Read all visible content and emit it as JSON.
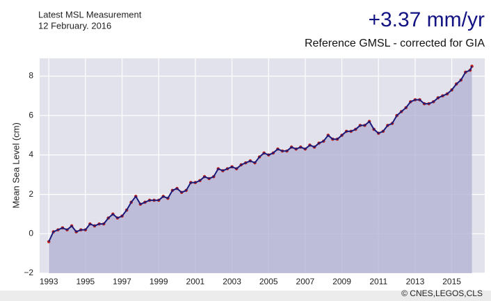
{
  "chart_data": {
    "type": "line",
    "title": "+3.37 mm/yr",
    "subtitle": "Reference GMSL - corrected for GIA",
    "annotations": [
      "Latest MSL Measurement",
      "12 February. 2016"
    ],
    "source": "© CNES,LEGOS,CLS",
    "ylabel": "Mean Sea Level (cm)",
    "x": [
      1993.0,
      1993.25,
      1993.5,
      1993.75,
      1994.0,
      1994.25,
      1994.5,
      1994.75,
      1995.0,
      1995.25,
      1995.5,
      1995.75,
      1996.0,
      1996.25,
      1996.5,
      1996.75,
      1997.0,
      1997.25,
      1997.5,
      1997.75,
      1998.0,
      1998.25,
      1998.5,
      1998.75,
      1999.0,
      1999.25,
      1999.5,
      1999.75,
      2000.0,
      2000.25,
      2000.5,
      2000.75,
      2001.0,
      2001.25,
      2001.5,
      2001.75,
      2002.0,
      2002.25,
      2002.5,
      2002.75,
      2003.0,
      2003.25,
      2003.5,
      2003.75,
      2004.0,
      2004.25,
      2004.5,
      2004.75,
      2005.0,
      2005.25,
      2005.5,
      2005.75,
      2006.0,
      2006.25,
      2006.5,
      2006.75,
      2007.0,
      2007.25,
      2007.5,
      2007.75,
      2008.0,
      2008.25,
      2008.5,
      2008.75,
      2009.0,
      2009.25,
      2009.5,
      2009.75,
      2010.0,
      2010.25,
      2010.5,
      2010.75,
      2011.0,
      2011.25,
      2011.5,
      2011.75,
      2012.0,
      2012.25,
      2012.5,
      2012.75,
      2013.0,
      2013.25,
      2013.5,
      2013.75,
      2014.0,
      2014.25,
      2014.5,
      2014.75,
      2015.0,
      2015.25,
      2015.5,
      2015.75,
      2016.0,
      2016.1
    ],
    "values": [
      -0.4,
      0.1,
      0.2,
      0.3,
      0.2,
      0.4,
      0.1,
      0.2,
      0.2,
      0.5,
      0.4,
      0.5,
      0.5,
      0.8,
      1.0,
      0.8,
      0.9,
      1.2,
      1.6,
      1.9,
      1.5,
      1.6,
      1.7,
      1.7,
      1.7,
      1.9,
      1.8,
      2.2,
      2.3,
      2.1,
      2.2,
      2.6,
      2.6,
      2.7,
      2.9,
      2.8,
      2.9,
      3.3,
      3.2,
      3.3,
      3.4,
      3.3,
      3.5,
      3.6,
      3.7,
      3.6,
      3.9,
      4.1,
      4.0,
      4.1,
      4.3,
      4.2,
      4.2,
      4.4,
      4.3,
      4.4,
      4.3,
      4.5,
      4.4,
      4.6,
      4.7,
      5.0,
      4.8,
      4.8,
      5.0,
      5.2,
      5.2,
      5.3,
      5.5,
      5.5,
      5.7,
      5.3,
      5.1,
      5.2,
      5.5,
      5.6,
      6.0,
      6.2,
      6.4,
      6.7,
      6.8,
      6.8,
      6.6,
      6.6,
      6.7,
      6.9,
      7.0,
      7.1,
      7.3,
      7.6,
      7.8,
      8.2,
      8.3,
      8.5
    ],
    "color": "#1a1a7a",
    "marker_color": "#c0241c",
    "fill_color": "#b4b4d4",
    "xlim": [
      1992.5,
      2016.8
    ],
    "ylim": [
      -2,
      8.9
    ],
    "xticks": [
      1993,
      1995,
      1997,
      1999,
      2001,
      2003,
      2005,
      2007,
      2009,
      2011,
      2013,
      2015
    ],
    "yticks": [
      {
        "value": -2,
        "label": "−2"
      },
      0,
      2,
      4,
      6,
      8
    ],
    "grid": true
  }
}
